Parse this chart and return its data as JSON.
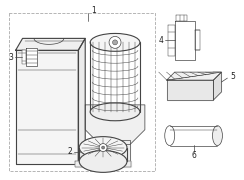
{
  "bg_color": "#ffffff",
  "lc": "#444444",
  "lc_light": "#888888",
  "lc_dashed": "#aaaaaa",
  "label_color": "#222222",
  "figsize": [
    2.44,
    1.8
  ],
  "dpi": 100,
  "lw_main": 0.8,
  "lw_detail": 0.5,
  "lw_thin": 0.35,
  "label_fs": 5.5
}
